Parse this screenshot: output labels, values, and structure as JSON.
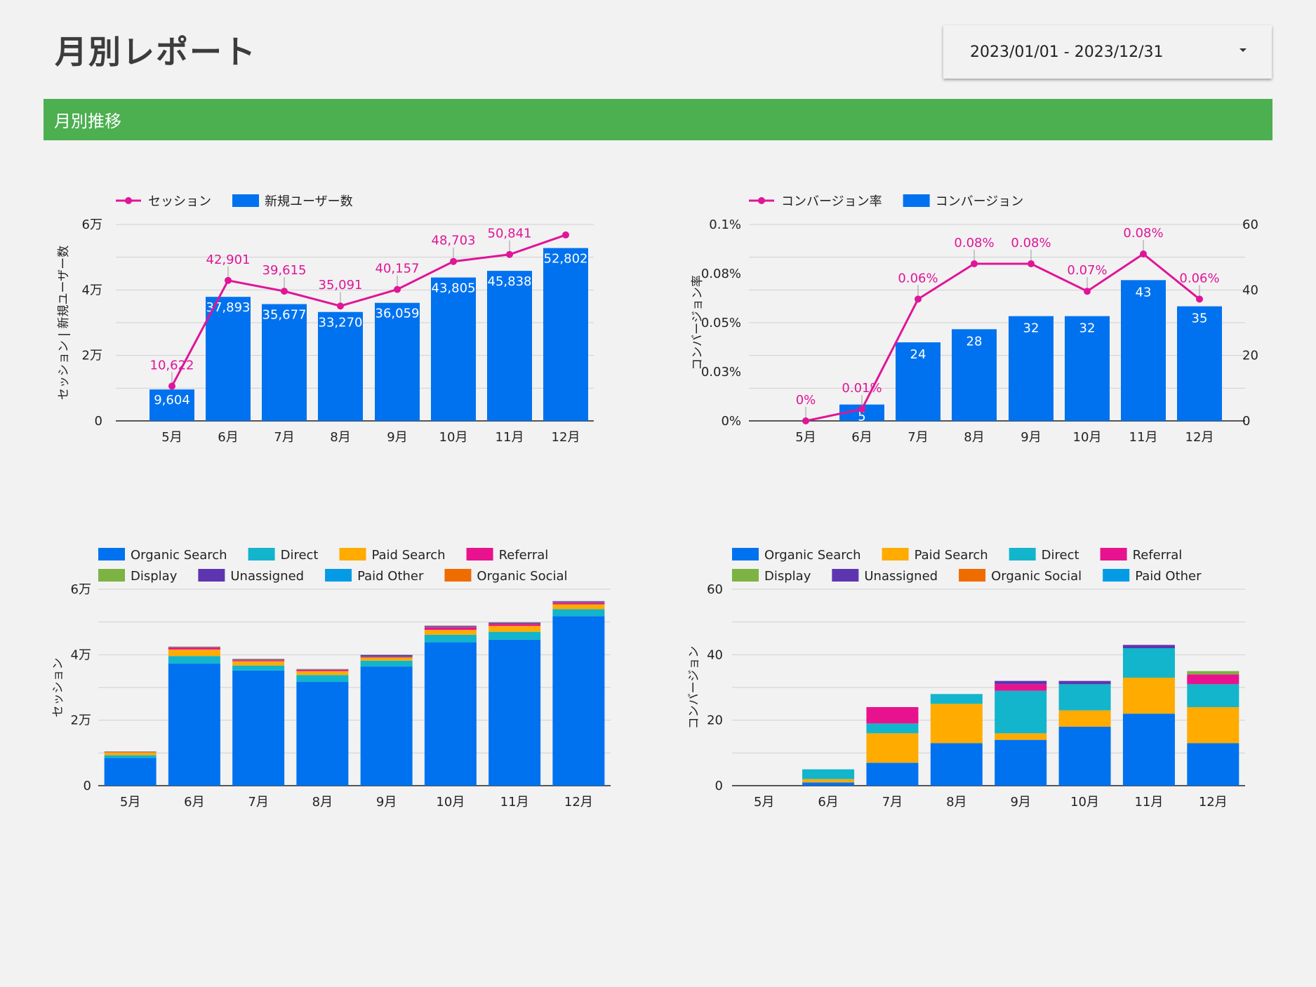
{
  "page": {
    "title": "月別レポート",
    "date_range": "2023/01/01 - 2023/12/31",
    "section_title": "月別推移"
  },
  "colors": {
    "line": "#e01598",
    "bar": "#0072ef",
    "section": "#4caf50"
  },
  "chart_data": [
    {
      "type": "bar+line",
      "categories": [
        "5月",
        "6月",
        "7月",
        "8月",
        "9月",
        "10月",
        "11月",
        "12月"
      ],
      "series": [
        {
          "name": "セッション",
          "type": "line",
          "color": "#e01598",
          "values": [
            10622,
            42901,
            39615,
            35091,
            40157,
            48703,
            50841,
            56800
          ],
          "labels": [
            "10,622",
            "42,901",
            "39,615",
            "35,091",
            "40,157",
            "48,703",
            "50,841",
            ""
          ]
        },
        {
          "name": "新規ユーザー数",
          "type": "bar",
          "color": "#0072ef",
          "values": [
            9604,
            37893,
            35677,
            33270,
            36059,
            43805,
            45838,
            52802
          ],
          "labels": [
            "9,604",
            "37,893",
            "35,677",
            "33,270",
            "36,059",
            "43,805",
            "45,838",
            "52,802"
          ]
        }
      ],
      "y_ticks": [
        "0",
        "2万",
        "4万",
        "6万"
      ],
      "ylim": [
        0,
        60000
      ],
      "ylabel": "セッション | 新規ユーザー数",
      "legend": "top-left",
      "grid": true
    },
    {
      "type": "bar+line",
      "categories": [
        "5月",
        "6月",
        "7月",
        "8月",
        "9月",
        "10月",
        "11月",
        "12月"
      ],
      "series": [
        {
          "name": "コンバージョン率",
          "type": "line",
          "axis": "left",
          "color": "#e01598",
          "values": [
            0,
            0.006,
            0.062,
            0.08,
            0.08,
            0.066,
            0.085,
            0.062
          ],
          "labels": [
            "0%",
            "0.01%",
            "0.06%",
            "0.08%",
            "0.08%",
            "0.07%",
            "0.08%",
            "0.06%"
          ]
        },
        {
          "name": "コンバージョン",
          "type": "bar",
          "axis": "right",
          "color": "#0072ef",
          "values": [
            0,
            5,
            24,
            28,
            32,
            32,
            43,
            35
          ],
          "labels": [
            "0",
            "5",
            "24",
            "28",
            "32",
            "32",
            "43",
            "35"
          ]
        }
      ],
      "y_ticks_left": [
        "0%",
        "0.03%",
        "0.05%",
        "0.08%",
        "0.1%"
      ],
      "ylim_left": [
        0,
        0.1
      ],
      "y_ticks_right": [
        "0",
        "20",
        "40",
        "60"
      ],
      "ylim_right": [
        0,
        60
      ],
      "ylabel": "コンバージョン率",
      "legend": "top-left",
      "grid": true
    },
    {
      "type": "stacked-bar",
      "categories": [
        "5月",
        "6月",
        "7月",
        "8月",
        "9月",
        "10月",
        "11月",
        "12月"
      ],
      "series": [
        {
          "name": "Organic Search",
          "color": "#0072ef",
          "values": [
            8500,
            37300,
            35200,
            31700,
            36400,
            43800,
            44600,
            51800
          ]
        },
        {
          "name": "Direct",
          "color": "#12b5cb",
          "values": [
            800,
            2300,
            1500,
            2100,
            1800,
            2300,
            2400,
            2100
          ]
        },
        {
          "name": "Paid Search",
          "color": "#ffab00",
          "values": [
            900,
            2000,
            1300,
            1200,
            900,
            1500,
            1800,
            1500
          ]
        },
        {
          "name": "Referral",
          "color": "#e8128e",
          "values": [
            100,
            600,
            300,
            400,
            200,
            800,
            600,
            500
          ]
        },
        {
          "name": "Display",
          "color": "#7cb342",
          "values": [
            50,
            100,
            100,
            50,
            100,
            100,
            100,
            100
          ]
        },
        {
          "name": "Unassigned",
          "color": "#5e35b1",
          "values": [
            50,
            100,
            200,
            100,
            500,
            300,
            300,
            300
          ]
        },
        {
          "name": "Paid Other",
          "color": "#039be5",
          "values": [
            50,
            50,
            50,
            50,
            50,
            50,
            50,
            50
          ]
        },
        {
          "name": "Organic Social",
          "color": "#ef6c00",
          "values": [
            50,
            50,
            100,
            50,
            50,
            50,
            50,
            50
          ]
        }
      ],
      "y_ticks": [
        "0",
        "2万",
        "4万",
        "6万"
      ],
      "ylim": [
        0,
        60000
      ],
      "ylabel": "セッション",
      "legend": "top-left",
      "grid": true
    },
    {
      "type": "stacked-bar",
      "categories": [
        "5月",
        "6月",
        "7月",
        "8月",
        "9月",
        "10月",
        "11月",
        "12月"
      ],
      "series": [
        {
          "name": "Organic Search",
          "color": "#0072ef",
          "values": [
            0,
            1,
            7,
            13,
            14,
            18,
            22,
            13
          ]
        },
        {
          "name": "Paid Search",
          "color": "#ffab00",
          "values": [
            0,
            1,
            9,
            12,
            2,
            5,
            11,
            11
          ]
        },
        {
          "name": "Direct",
          "color": "#12b5cb",
          "values": [
            0,
            3,
            3,
            3,
            13,
            8,
            9,
            7
          ]
        },
        {
          "name": "Referral",
          "color": "#e8128e",
          "values": [
            0,
            0,
            5,
            0,
            2,
            0,
            0,
            3
          ]
        },
        {
          "name": "Display",
          "color": "#7cb342",
          "values": [
            0,
            0,
            0,
            0,
            0,
            0,
            0,
            1
          ]
        },
        {
          "name": "Unassigned",
          "color": "#5e35b1",
          "values": [
            0,
            0,
            0,
            0,
            1,
            1,
            1,
            0
          ]
        },
        {
          "name": "Organic Social",
          "color": "#ef6c00",
          "values": [
            0,
            0,
            0,
            0,
            0,
            0,
            0,
            0
          ]
        },
        {
          "name": "Paid Other",
          "color": "#039be5",
          "values": [
            0,
            0,
            0,
            0,
            0,
            0,
            0,
            0
          ]
        }
      ],
      "y_ticks": [
        "0",
        "20",
        "40",
        "60"
      ],
      "ylim": [
        0,
        60
      ],
      "ylabel": "コンバージョン",
      "legend": "top-left",
      "grid": true
    }
  ]
}
